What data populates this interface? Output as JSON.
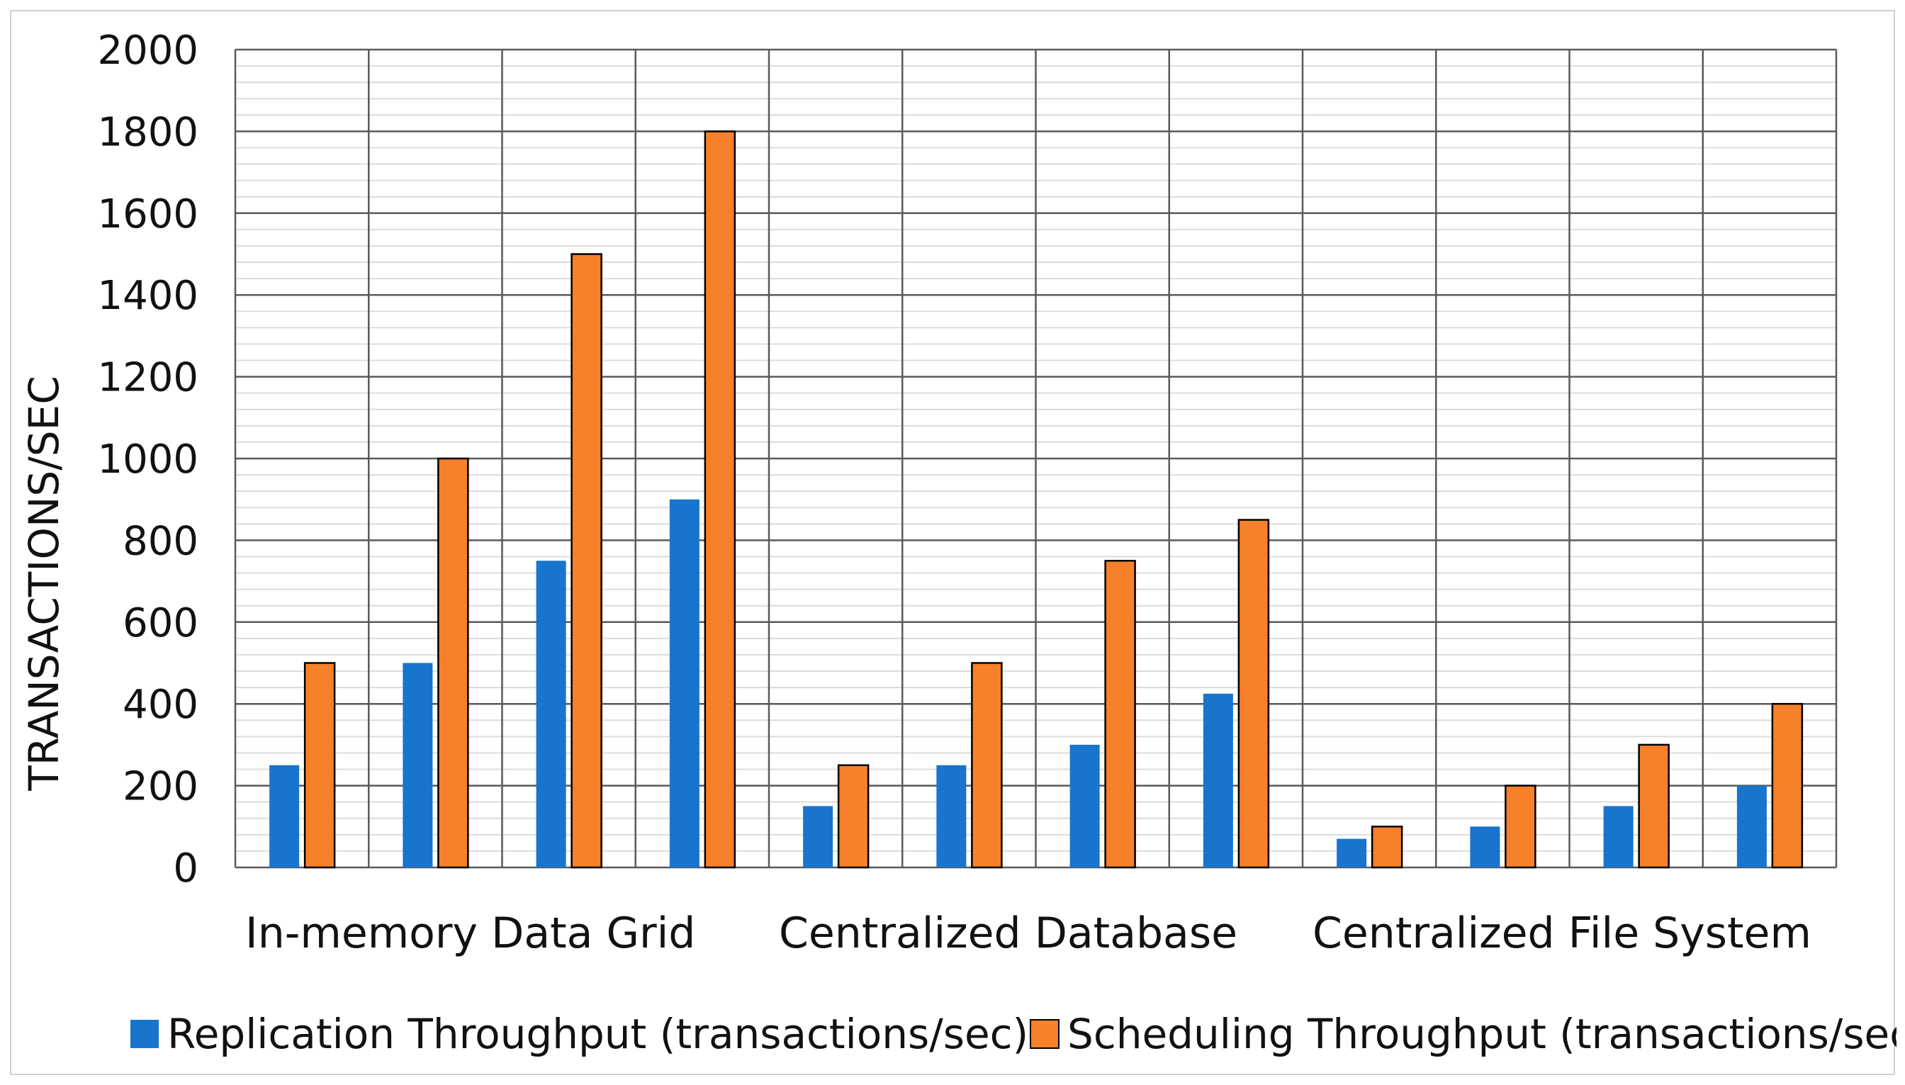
{
  "chart_data": {
    "type": "bar",
    "ylabel": "TRANSACTIONS/SEC",
    "ylim": [
      0,
      2000
    ],
    "yticks": [
      0,
      200,
      400,
      600,
      800,
      1000,
      1200,
      1400,
      1600,
      1800,
      2000
    ],
    "categories": [
      "",
      "",
      "",
      "",
      "",
      "",
      "",
      "",
      "",
      "",
      "",
      ""
    ],
    "group_labels": [
      "In-memory Data Grid",
      "Centralized Database",
      "Centralized File System"
    ],
    "grid": true,
    "legend_position": "bottom",
    "series": [
      {
        "name": "Replication Throughput (transactions/sec)",
        "color": "#1874CD",
        "values": [
          250,
          500,
          750,
          900,
          150,
          250,
          300,
          425,
          70,
          100,
          150,
          200
        ]
      },
      {
        "name": "Scheduling Throughput (transactions/sec)",
        "color": "#F7802A",
        "values": [
          500,
          1000,
          1500,
          1800,
          250,
          500,
          750,
          850,
          100,
          200,
          300,
          400
        ]
      }
    ]
  }
}
